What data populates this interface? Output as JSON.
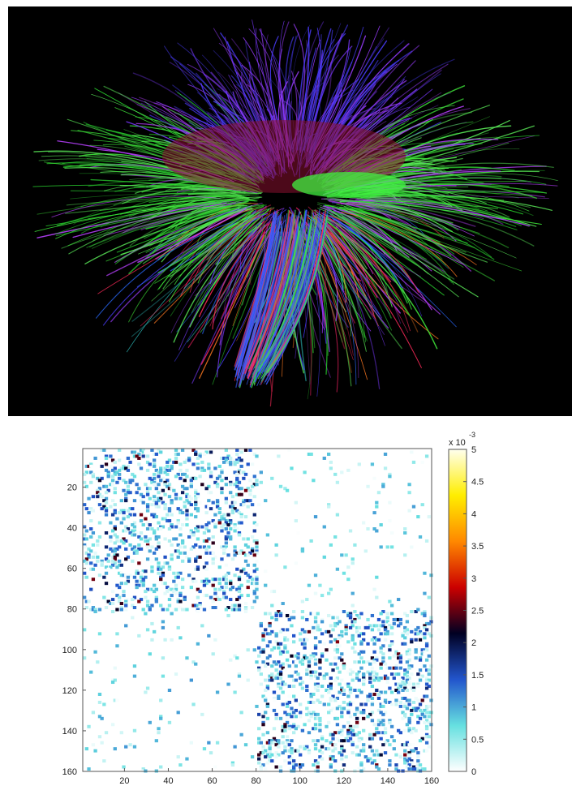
{
  "figure": {
    "top_panel": {
      "icon": "brain-tractography-image"
    },
    "bottom_panel": {
      "chart_data": {
        "type": "heatmap",
        "title": "",
        "xlabel": "",
        "ylabel": "",
        "x_ticks": [
          "20",
          "40",
          "60",
          "80",
          "100",
          "120",
          "140",
          "160"
        ],
        "y_ticks": [
          "20",
          "40",
          "60",
          "80",
          "100",
          "120",
          "140",
          "160"
        ],
        "xlim": [
          1,
          160
        ],
        "ylim": [
          1,
          160
        ],
        "blocks": [
          {
            "rows": [
              1,
              80
            ],
            "cols": [
              1,
              80
            ],
            "density": "high"
          },
          {
            "rows": [
              81,
              160
            ],
            "cols": [
              81,
              160
            ],
            "density": "high"
          },
          {
            "rows": [
              1,
              80
            ],
            "cols": [
              81,
              160
            ],
            "density": "low"
          },
          {
            "rows": [
              81,
              160
            ],
            "cols": [
              1,
              80
            ],
            "density": "low"
          }
        ],
        "colorbar": {
          "exponent_label": "x 10",
          "exponent_value": "-3",
          "ticks": [
            "0",
            "0.5",
            "1",
            "1.5",
            "2",
            "2.5",
            "3",
            "3.5",
            "4",
            "4.5",
            "5"
          ],
          "range": [
            0,
            5
          ],
          "colors": [
            "#ffffff",
            "#66e0e0",
            "#2255cc",
            "#000022",
            "#cc0000",
            "#ff8800",
            "#ffee00",
            "#ffffee"
          ]
        }
      }
    }
  }
}
